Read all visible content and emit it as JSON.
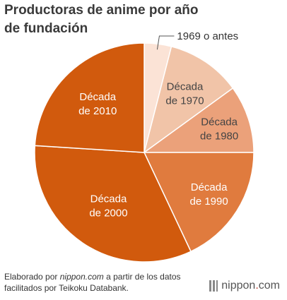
{
  "title_line1": "Productoras de anime por año",
  "title_line2": "de fundación",
  "chart_data": {
    "type": "pie",
    "title": "Productoras de anime por año de fundación",
    "slices": [
      {
        "label": "1969 o antes",
        "value": 4,
        "color": "#fbe3d6"
      },
      {
        "label": "Década de 1970",
        "value": 11,
        "color": "#f1c4a8"
      },
      {
        "label": "Década de 1980",
        "value": 10,
        "color": "#eba17a"
      },
      {
        "label": "Década de 1990",
        "value": 18,
        "color": "#e07b3e"
      },
      {
        "label": "Década de 2000",
        "value": 33,
        "color": "#d15a0d"
      },
      {
        "label": "Década de 2010",
        "value": 24,
        "color": "#d15a0d"
      }
    ],
    "labels_display": [
      {
        "line1": "1969 o antes",
        "line2": ""
      },
      {
        "line1": "Década",
        "line2": "de 1970"
      },
      {
        "line1": "Década",
        "line2": "de 1980"
      },
      {
        "line1": "Década",
        "line2": "de 1990"
      },
      {
        "line1": "Década",
        "line2": "de 2000"
      },
      {
        "line1": "Década",
        "line2": "de 2010"
      }
    ]
  },
  "footer": {
    "prefix": "Elaborado por ",
    "site": "nippon.com",
    "suffix": " a partir de los datos facilitados por Teikoku Databank."
  },
  "brand": {
    "name": "nippon",
    "dot": ".",
    "tld": "com",
    "accent": "#c0392b"
  }
}
